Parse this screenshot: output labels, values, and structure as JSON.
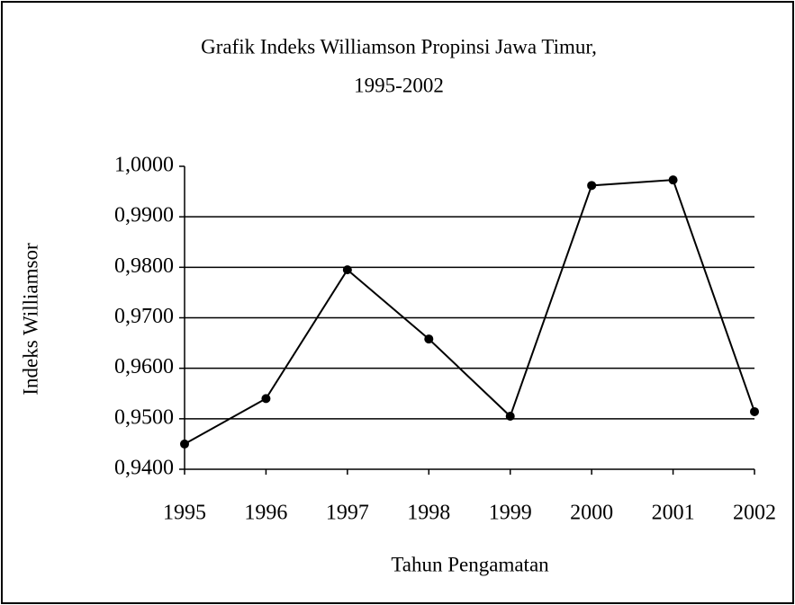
{
  "chart_data": {
    "type": "line",
    "title": [
      "Grafik Indeks Williamson Propinsi Jawa Timur,",
      "1995-2002"
    ],
    "x_label": "Tahun Pengamatan",
    "y_label": "Indeks Williamsor",
    "categories": [
      "1995",
      "1996",
      "1997",
      "1998",
      "1999",
      "2000",
      "2001",
      "2002"
    ],
    "series": [
      {
        "name": "Indeks Williamson",
        "color": "#000000",
        "values": [
          0.945,
          0.954,
          0.9795,
          0.9658,
          0.9505,
          0.9962,
          0.9973,
          0.9514
        ]
      }
    ],
    "ylim": [
      0.94,
      1.0
    ],
    "yticks": [
      {
        "value": 0.94,
        "label": "0,9400"
      },
      {
        "value": 0.95,
        "label": "0,9500"
      },
      {
        "value": 0.96,
        "label": "0,9600"
      },
      {
        "value": 0.97,
        "label": "0,9700"
      },
      {
        "value": 0.98,
        "label": "0,9800"
      },
      {
        "value": 0.99,
        "label": "0,9900"
      },
      {
        "value": 1.0,
        "label": "1,0000"
      }
    ],
    "grid": true
  }
}
